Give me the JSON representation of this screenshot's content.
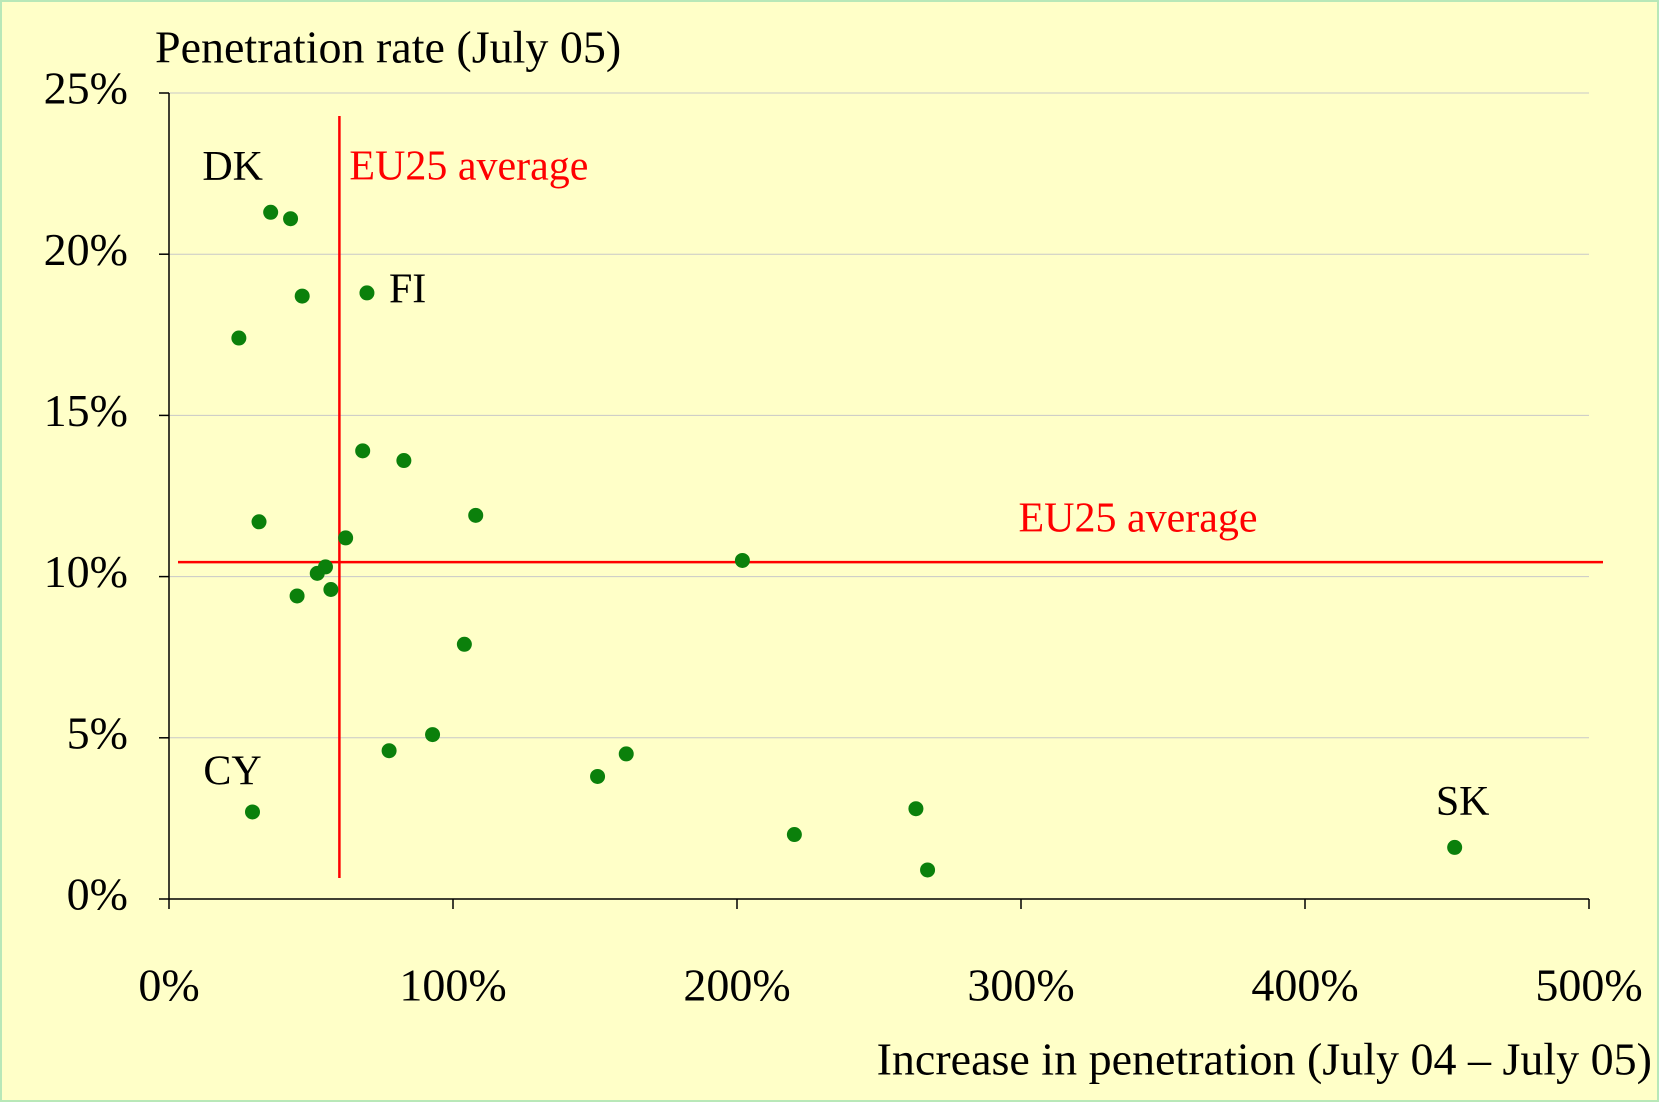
{
  "chart_data": {
    "type": "scatter",
    "y_title": "Penetration rate (July 05)",
    "x_title": "Increase in penetration (July 04 – July 05)",
    "x": [
      35.8,
      42.8,
      46.9,
      69.7,
      24.6,
      68.2,
      82.7,
      108,
      31.7,
      62.2,
      55.1,
      52.2,
      57.0,
      45.1,
      201.9,
      104,
      92.8,
      77.5,
      150.9,
      161,
      29.4,
      263,
      220.2,
      267.1,
      452.7
    ],
    "values": [
      21.3,
      21.1,
      18.7,
      18.8,
      17.4,
      13.9,
      13.6,
      11.9,
      11.7,
      11.2,
      10.3,
      10.1,
      9.6,
      9.4,
      10.5,
      7.9,
      5.1,
      4.6,
      3.8,
      4.5,
      2.7,
      2.8,
      2.0,
      0.9,
      1.6
    ],
    "labels": [
      "DK",
      null,
      null,
      "FI",
      null,
      null,
      null,
      null,
      null,
      null,
      null,
      null,
      null,
      null,
      null,
      null,
      null,
      null,
      null,
      null,
      "CY",
      null,
      null,
      null,
      "SK"
    ],
    "color": "#0b800b",
    "reference_lines": [
      {
        "axis": "x",
        "value": 60,
        "label": "EU25 average",
        "color": "#ff0000"
      },
      {
        "axis": "y",
        "value": 10.45,
        "label": "EU25 average",
        "color": "#ff0000"
      }
    ],
    "xlim": [
      0,
      500
    ],
    "xticks": [
      {
        "value": 0,
        "label": "0%"
      },
      {
        "value": 100,
        "label": "100%"
      },
      {
        "value": 200,
        "label": "200%"
      },
      {
        "value": 300,
        "label": "300%"
      },
      {
        "value": 400,
        "label": "400%"
      },
      {
        "value": 500,
        "label": "500%"
      }
    ],
    "ylim": [
      0,
      25
    ],
    "yticks": [
      {
        "value": 0,
        "label": "0%"
      },
      {
        "value": 5,
        "label": "5%"
      },
      {
        "value": 10,
        "label": "10%"
      },
      {
        "value": 15,
        "label": "15%"
      },
      {
        "value": 20,
        "label": "20%"
      },
      {
        "value": 25,
        "label": "25%"
      }
    ],
    "grid": true
  }
}
